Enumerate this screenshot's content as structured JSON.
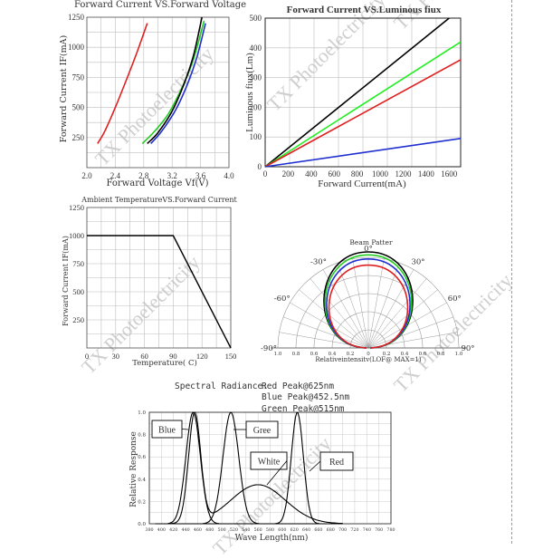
{
  "watermark": "TX Photoelectricity",
  "chart_data": [
    {
      "id": "iv",
      "type": "line",
      "title": "Forward Current VS.Forward Voltage",
      "xlabel": "Forward Voltage Vf(V)",
      "ylabel": "Forward Current IF(mA)",
      "xlim": [
        2.0,
        4.0
      ],
      "ylim": [
        0,
        1250
      ],
      "xticks": [
        2.0,
        2.4,
        2.8,
        3.2,
        3.6,
        4.0
      ],
      "xtick_labels": [
        "2.0",
        "2.4",
        "2.8",
        "3.2",
        "3.6",
        "4.0"
      ],
      "yticks": [
        250,
        500,
        750,
        1000,
        1250
      ],
      "grid": true,
      "series": [
        {
          "color": "#e02020",
          "x": [
            2.15,
            2.25,
            2.4,
            2.55,
            2.7,
            2.85
          ],
          "y": [
            200,
            300,
            500,
            720,
            950,
            1200
          ]
        },
        {
          "color": "#22cc22",
          "x": [
            2.78,
            2.95,
            3.15,
            3.35,
            3.5,
            3.65
          ],
          "y": [
            200,
            300,
            450,
            680,
            900,
            1220
          ]
        },
        {
          "color": "#2030d0",
          "x": [
            2.9,
            3.05,
            3.25,
            3.42,
            3.55,
            3.67
          ],
          "y": [
            200,
            300,
            480,
            700,
            920,
            1200
          ]
        },
        {
          "color": "#000000",
          "x": [
            2.85,
            3.0,
            3.2,
            3.37,
            3.5,
            3.62
          ],
          "y": [
            200,
            290,
            470,
            700,
            930,
            1250
          ]
        }
      ]
    },
    {
      "id": "flux",
      "type": "line",
      "title": "Forward Current VS.Luminous fiux",
      "xlabel": "Forward Current(mA)",
      "ylabel": "Luminous fiux(Lm)",
      "xlim": [
        0,
        1700
      ],
      "ylim": [
        0,
        500
      ],
      "xticks": [
        0,
        200,
        400,
        600,
        800,
        1000,
        1200,
        1400,
        1600
      ],
      "yticks": [
        0,
        100,
        200,
        300,
        400,
        500
      ],
      "grid": true,
      "series": [
        {
          "color": "#000000",
          "x": [
            0,
            1600
          ],
          "y": [
            0,
            500
          ]
        },
        {
          "color": "#22ee22",
          "x": [
            0,
            1700
          ],
          "y": [
            0,
            420
          ]
        },
        {
          "color": "#e02020",
          "x": [
            0,
            1700
          ],
          "y": [
            0,
            360
          ]
        },
        {
          "color": "#2030d0",
          "x": [
            0,
            1700
          ],
          "y": [
            0,
            95
          ]
        }
      ]
    },
    {
      "id": "derating",
      "type": "line",
      "title": "Ambient TemperatureVS.Forward Current",
      "xlabel": "Temperature(  C)",
      "ylabel": "Forward Current IF(mA)",
      "xlim": [
        0,
        150
      ],
      "ylim": [
        0,
        1250
      ],
      "xticks": [
        0,
        30,
        60,
        90,
        120,
        150
      ],
      "yticks": [
        250,
        500,
        750,
        1000,
        1250
      ],
      "grid": true,
      "series": [
        {
          "color": "#000000",
          "x": [
            0,
            90,
            150
          ],
          "y": [
            1000,
            1000,
            0
          ]
        }
      ]
    },
    {
      "id": "beam",
      "type": "polar",
      "title": "Beam Patter",
      "xlabel": "Relativeintensitv(LOF@ MAX=1)",
      "angle_labels": [
        "0°",
        "30°",
        "-30°",
        "60°",
        "-60°",
        "90°",
        "-90°"
      ],
      "radial_labels": [
        "1.0",
        "0.8",
        "0.6",
        "0.4",
        "0.2",
        "0",
        "0.2",
        "0.4",
        "0.6",
        "0.8",
        "1.0"
      ],
      "series": [
        {
          "color": "#000000",
          "scale": 1.0
        },
        {
          "color": "#22cc22",
          "scale": 0.97
        },
        {
          "color": "#2030d0",
          "scale": 0.93
        },
        {
          "color": "#e02020",
          "scale": 0.87
        }
      ]
    },
    {
      "id": "spectrum",
      "type": "line",
      "title": "Spectral Radiance:",
      "annotations": [
        "Red Peak@625nm",
        "Blue Peak@452.5nm",
        "Green Peak@515nm"
      ],
      "xlabel": "Wave Length(nm)",
      "ylabel": "Relative Response",
      "xlim": [
        380,
        780
      ],
      "ylim": [
        0,
        1.0
      ],
      "xticks": [
        380,
        400,
        420,
        440,
        460,
        480,
        500,
        520,
        540,
        560,
        580,
        600,
        620,
        640,
        660,
        680,
        700,
        720,
        740,
        760,
        780
      ],
      "yticks": [
        0,
        0.2,
        0.4,
        0.6,
        0.8,
        1.0
      ],
      "ytick_labels": [
        "0.0",
        "0.2",
        "0.4",
        "0.6",
        "0.8",
        "1.0"
      ],
      "grid": true,
      "series": [
        {
          "label": "Blue",
          "color": "#000000",
          "peak": 452.5,
          "width": 12
        },
        {
          "label": "Gree",
          "color": "#000000",
          "peak": 515,
          "width": 13
        },
        {
          "label": "Red",
          "color": "#000000",
          "peak": 625,
          "width": 10
        },
        {
          "label": "White",
          "color": "#000000",
          "peak": 455,
          "width": 10,
          "peak2": 560,
          "width2": 45,
          "amp2": 0.35
        }
      ]
    }
  ]
}
